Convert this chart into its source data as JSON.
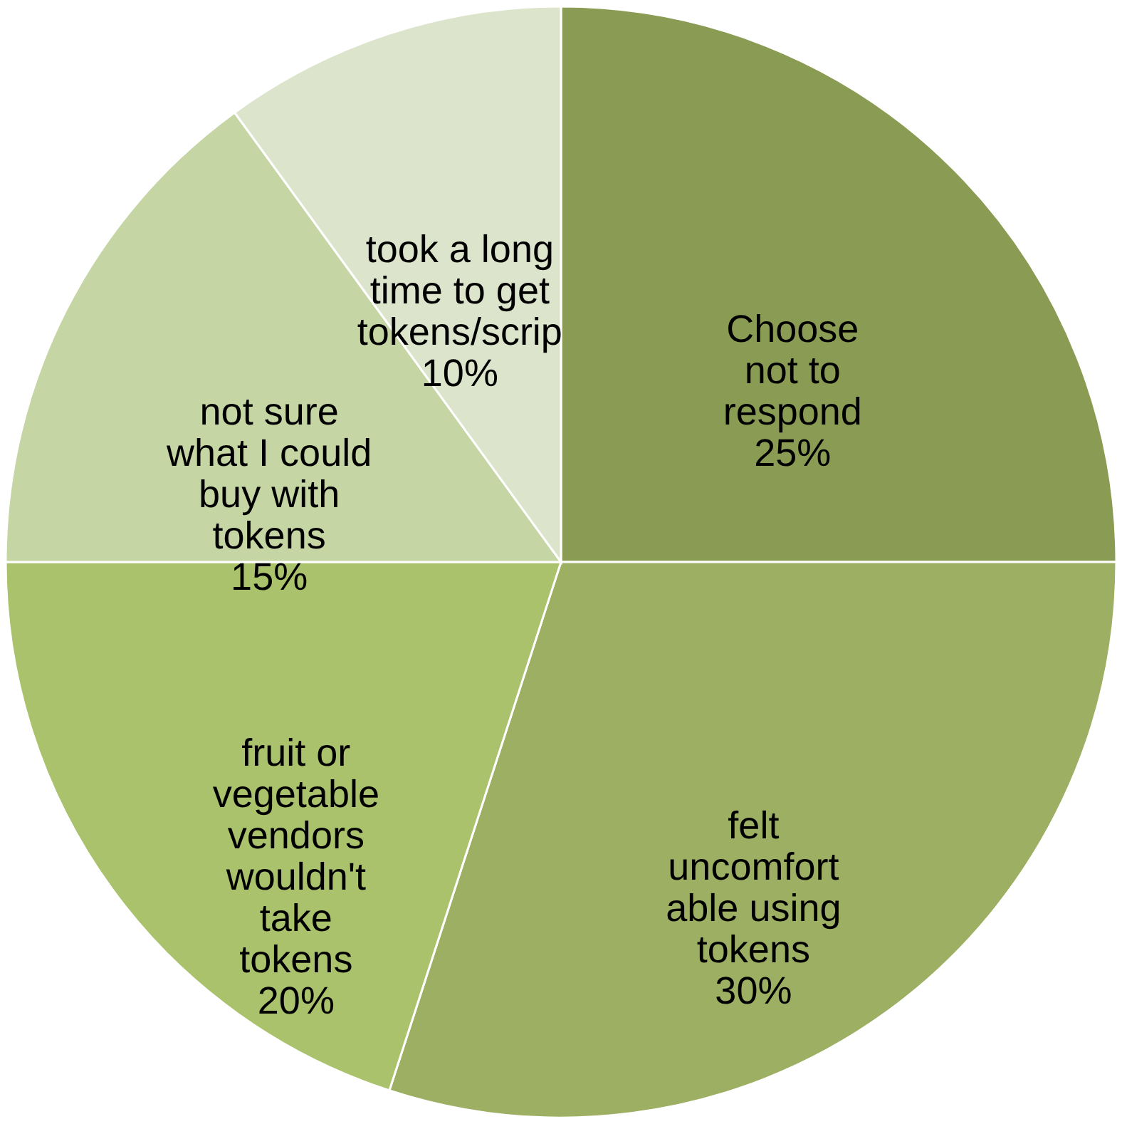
{
  "chart_data": {
    "type": "pie",
    "categories": [
      "Choose not to respond",
      "felt uncomfort able using tokens",
      "fruit or vegetable vendors wouldn't take tokens",
      "not sure what I could buy with tokens",
      "took a long time to get tokens/scrip"
    ],
    "values": [
      25,
      30,
      20,
      15,
      10
    ],
    "value_labels": [
      "25%",
      "30%",
      "20%",
      "15%",
      "10%"
    ],
    "colors": [
      "#8a9c54",
      "#9caf62",
      "#a9c26b",
      "#c5d5a4",
      "#dce4cb"
    ],
    "legend": false
  }
}
